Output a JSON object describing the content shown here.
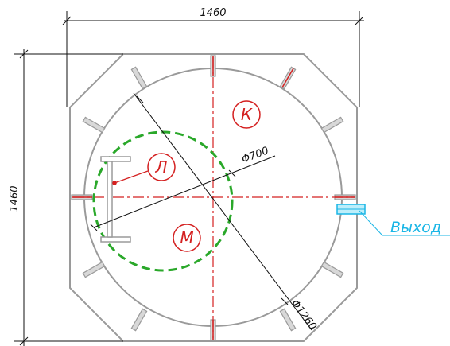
{
  "dimensions": {
    "width": "1460",
    "height": "1460",
    "inner_diameter": "Φ700",
    "outer_diameter": "Φ1260"
  },
  "zones": {
    "k": "К",
    "l": "Л",
    "m": "М"
  },
  "exit_label": "Выход",
  "colors": {
    "outline": "#9a9a9a",
    "axis": "#d42020",
    "inner_circle": "#2aa82a",
    "exit": "#1ab6e6",
    "dimension": "#111111",
    "support": "#c4c4c4"
  }
}
